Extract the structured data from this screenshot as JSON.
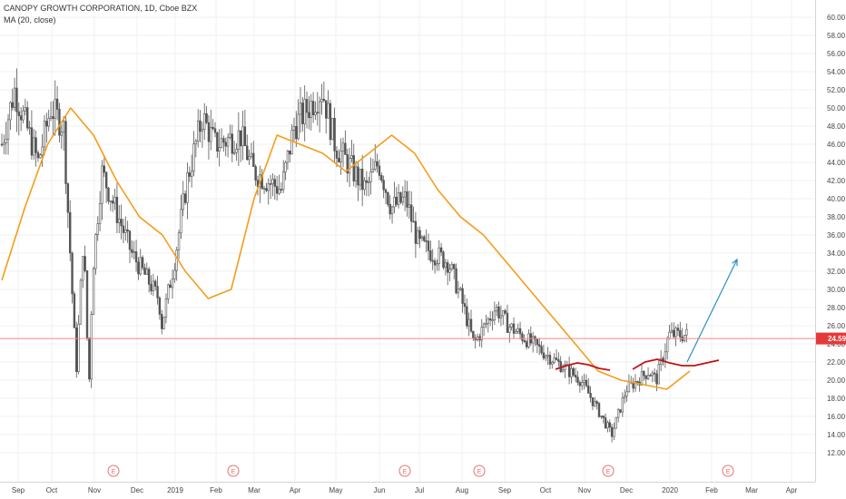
{
  "header": {
    "title": "CANOPY GROWTH CORPORATION, 1D, Cboe BZX",
    "indicator": "MA (20, close)"
  },
  "price_label": "24.59",
  "earnings_marker": "E",
  "colors": {
    "up": "#26a69a",
    "down": "#ef5350",
    "candle": "#555555",
    "ma": "#f59c1a",
    "resistance": "#c41212",
    "arrow": "#2a8fc4",
    "price_line": "#f28b8b",
    "price_badge": "#e5393a",
    "earnings": "#e57373"
  },
  "chart_data": {
    "type": "line",
    "chart": "candlestick",
    "title": "CANOPY GROWTH CORPORATION, 1D, Cboe BZX",
    "yaxis": {
      "position": "right",
      "ylim": [
        11,
        61
      ],
      "ticks": [
        "12.00",
        "14.00",
        "16.00",
        "18.00",
        "20.00",
        "22.00",
        "24.00",
        "26.00",
        "28.00",
        "30.00",
        "32.00",
        "34.00",
        "36.00",
        "38.00",
        "40.00",
        "42.00",
        "44.00",
        "46.00",
        "48.00",
        "50.00",
        "52.00",
        "54.00",
        "56.00",
        "58.00",
        "60.00"
      ]
    },
    "xaxis": {
      "labels": [
        "Sep",
        "Oct",
        "Nov",
        "Dec",
        "2019",
        "Feb",
        "Mar",
        "Apr",
        "May",
        "Jun",
        "Jul",
        "Aug",
        "Sep",
        "Oct",
        "Nov",
        "Dec",
        "2020",
        "Feb",
        "Mar",
        "Apr"
      ]
    },
    "grid": true,
    "last_price": 24.59,
    "earnings_markers": [
      "Nov",
      "Feb",
      "Jun",
      "Aug",
      "Nov",
      "Feb"
    ],
    "price_path": [
      [
        "Sep",
        46
      ],
      [
        "Sep",
        52
      ],
      [
        "Oct",
        44
      ],
      [
        "Oct",
        50
      ],
      [
        "Oct",
        48
      ],
      [
        "Nov",
        36
      ],
      [
        "Nov",
        32
      ],
      [
        "Nov",
        43
      ],
      [
        "Dec",
        34
      ],
      [
        "Dec",
        29
      ],
      [
        "2019",
        26
      ],
      [
        "2019",
        33
      ],
      [
        "2019",
        42
      ],
      [
        "Feb",
        49
      ],
      [
        "Feb",
        46
      ],
      [
        "Mar",
        47
      ],
      [
        "Mar",
        43
      ],
      [
        "Apr",
        41
      ],
      [
        "Apr",
        48
      ],
      [
        "May",
        52
      ],
      [
        "May",
        46
      ],
      [
        "Jun",
        41
      ],
      [
        "Jun",
        44
      ],
      [
        "Jun",
        39
      ],
      [
        "Jul",
        40
      ],
      [
        "Jul",
        35
      ],
      [
        "Aug",
        33
      ],
      [
        "Aug",
        29
      ],
      [
        "Aug",
        24
      ],
      [
        "Sep",
        28
      ],
      [
        "Sep",
        26
      ],
      [
        "Oct",
        21
      ],
      [
        "Oct",
        19
      ],
      [
        "Nov",
        20
      ],
      [
        "Nov",
        14
      ],
      [
        "Dec",
        19
      ],
      [
        "Dec",
        21
      ],
      [
        "2020",
        20
      ],
      [
        "2020",
        25
      ]
    ],
    "series": [
      {
        "name": "MA (20, close)",
        "values": [
          31,
          39,
          46,
          50,
          47,
          42,
          38,
          36,
          32,
          29,
          30,
          40,
          47,
          46,
          45,
          43,
          45,
          47,
          45,
          41,
          38,
          36,
          33,
          30,
          27,
          24,
          21,
          20,
          19.5,
          19,
          21
        ]
      }
    ],
    "annotations": [
      {
        "type": "resistance_curve",
        "values": [
          21.2,
          21.6,
          21.9,
          21.7,
          21.3,
          21.1
        ]
      },
      {
        "type": "resistance_curve",
        "values": [
          21.2,
          22,
          22.3,
          21.9,
          21.6,
          21.6,
          21.9,
          22.2
        ]
      },
      {
        "type": "projection_arrow",
        "from": 22.0,
        "to": 33.3
      }
    ]
  }
}
